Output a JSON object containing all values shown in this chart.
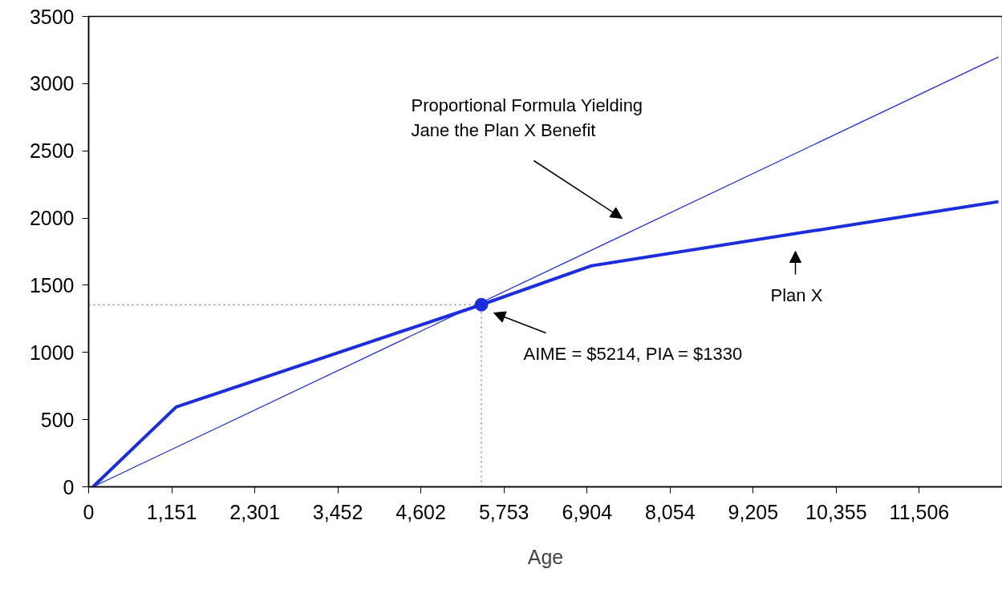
{
  "chart_data": {
    "type": "line",
    "xlabel": "Age",
    "xlim": [
      0,
      12657
    ],
    "ylim": [
      0,
      3500
    ],
    "xticks": [
      0,
      {
        "value": 1151,
        "label": "1,151"
      },
      {
        "value": 2301,
        "label": "2,301"
      },
      {
        "value": 3452,
        "label": "3,452"
      },
      {
        "value": 4602,
        "label": "4,602"
      },
      {
        "value": 5753,
        "label": "5,753"
      },
      {
        "value": 6904,
        "label": "6,904"
      },
      {
        "value": 8054,
        "label": "8,054"
      },
      {
        "value": 9205,
        "label": "9,205"
      },
      {
        "value": 10355,
        "label": "10,355"
      },
      {
        "value": 11506,
        "label": "11,506"
      },
      {
        "value": 12657,
        "label": null
      }
    ],
    "yticks": [
      0,
      500,
      1000,
      1500,
      2000,
      2500,
      3000,
      3500
    ],
    "grid": false,
    "series": [
      {
        "color": "#1a2ee0",
        "line_style": "solid",
        "marker": "none",
        "x": [
          60,
          1212,
          5440,
          6966,
          12602
        ],
        "values": [
          0,
          594,
          1355,
          1645,
          2122
        ]
      },
      {
        "color": "#1a2ee0",
        "line_style": "solid",
        "marker": "none",
        "x": [
          60,
          12602
        ],
        "values": [
          0,
          3198
        ]
      },
      {
        "type": "scatter",
        "color": "#1a2ee0",
        "marker": "circle",
        "x": [
          5440
        ],
        "values": [
          1355
        ]
      }
    ],
    "ref_lines": [
      {
        "axis": "y",
        "value": 1355,
        "color": "#555555",
        "line_style": "dotted"
      },
      {
        "axis": "x",
        "value": 5440,
        "color": "#555555",
        "line_style": "dotted"
      }
    ],
    "annotations": [
      "Proportional Formula Yielding\nJane the Plan X Benefit",
      "Plan X",
      "AIME = $5214, PIA = $1330"
    ]
  }
}
